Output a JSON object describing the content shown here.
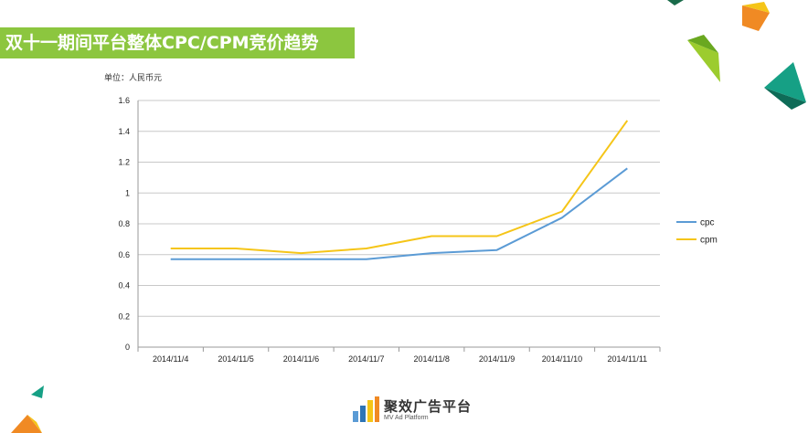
{
  "slide": {
    "title": "双十一期间平台整体CPC/CPM竞价趋势",
    "unit_note": "单位：人民币元"
  },
  "logo": {
    "name": "聚效广告平台",
    "subtitle": "MV Ad Platform"
  },
  "chart_data": {
    "type": "line",
    "title": "",
    "xlabel": "",
    "ylabel": "",
    "x": [
      "2014/11/4",
      "2014/11/5",
      "2014/11/6",
      "2014/11/7",
      "2014/11/8",
      "2014/11/9",
      "2014/11/10",
      "2014/11/11"
    ],
    "ylim": [
      0,
      1.6
    ],
    "yticks": [
      0,
      0.2,
      0.4,
      0.6,
      0.8,
      1,
      1.2,
      1.4,
      1.6
    ],
    "ytick_labels": [
      "0",
      "0.2",
      "0.4",
      "0.6",
      "0.8",
      "1",
      "1.2",
      "1.4",
      "1.6"
    ],
    "grid": "horizontal",
    "legend": "right",
    "series": [
      {
        "name": "cpc",
        "color": "#5b9bd5",
        "values": [
          0.57,
          0.57,
          0.57,
          0.57,
          0.61,
          0.63,
          0.84,
          1.16
        ]
      },
      {
        "name": "cpm",
        "color": "#f5c518",
        "values": [
          0.64,
          0.64,
          0.61,
          0.64,
          0.72,
          0.72,
          0.88,
          1.47
        ]
      }
    ]
  },
  "colors": {
    "title_bar": "#8cc63f",
    "grid": "#c8c8c8"
  }
}
